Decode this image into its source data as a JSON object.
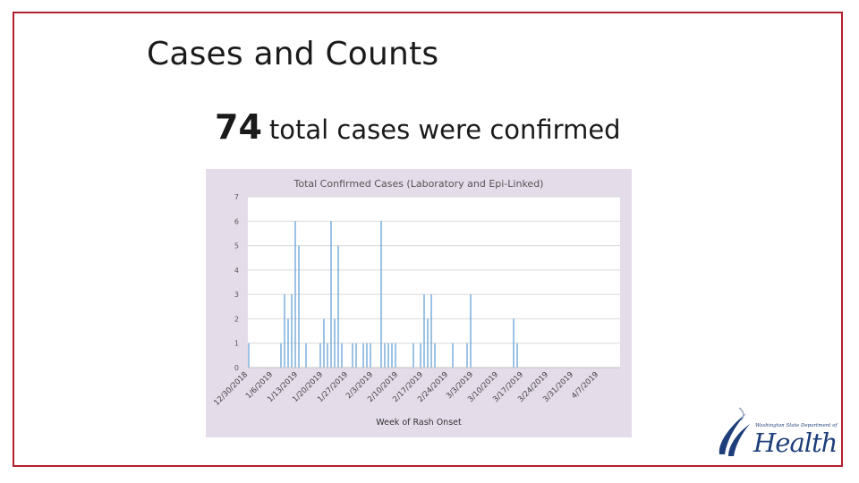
{
  "slide": {
    "title": "Cases and Counts",
    "summary_count": "74",
    "summary_text": "total cases were confirmed"
  },
  "colors": {
    "frame": "#b11f2b",
    "chart_background": "#e5dcea",
    "plot_background": "#ffffff",
    "bar": "#5b9bd5",
    "gridline": "#d9d9d9",
    "logo": "#1e3f7a"
  },
  "logo": {
    "org_text": "Washington State Department of",
    "brand_text": "Health",
    "icon": "health-swoosh-icon"
  },
  "chart_data": {
    "type": "bar",
    "title": "Total Confirmed Cases (Laboratory and Epi-Linked)",
    "xlabel": "Week of Rash Onset",
    "ylabel": "",
    "ylim": [
      0,
      7
    ],
    "yticks": [
      0,
      1,
      2,
      3,
      4,
      5,
      6,
      7
    ],
    "grid": true,
    "legend": "none",
    "x_ticks": [
      "12/30/2018",
      "1/6/2019",
      "1/13/2019",
      "1/20/2019",
      "1/27/2019",
      "2/3/2019",
      "2/10/2019",
      "2/17/2019",
      "2/24/2019",
      "3/3/2019",
      "3/10/2019",
      "3/17/2019",
      "3/24/2019",
      "3/31/2019",
      "4/7/2019"
    ],
    "x_range": [
      "12/30/2018",
      "4/13/2019"
    ],
    "x": [
      "12/30/2018",
      "1/8/2019",
      "1/9/2019",
      "1/10/2019",
      "1/11/2019",
      "1/12/2019",
      "1/13/2019",
      "1/15/2019",
      "1/19/2019",
      "1/20/2019",
      "1/21/2019",
      "1/22/2019",
      "1/23/2019",
      "1/24/2019",
      "1/25/2019",
      "1/28/2019",
      "1/29/2019",
      "1/31/2019",
      "2/1/2019",
      "2/2/2019",
      "2/5/2019",
      "2/6/2019",
      "2/7/2019",
      "2/8/2019",
      "2/9/2019",
      "2/14/2019",
      "2/16/2019",
      "2/17/2019",
      "2/18/2019",
      "2/19/2019",
      "2/20/2019",
      "2/25/2019",
      "3/1/2019",
      "3/2/2019",
      "3/14/2019",
      "3/15/2019"
    ],
    "values": [
      1,
      1,
      3,
      2,
      3,
      6,
      5,
      1,
      1,
      2,
      1,
      6,
      2,
      5,
      1,
      1,
      1,
      1,
      1,
      1,
      6,
      1,
      1,
      1,
      1,
      1,
      1,
      3,
      2,
      3,
      1,
      1,
      1,
      3,
      2,
      1
    ]
  }
}
